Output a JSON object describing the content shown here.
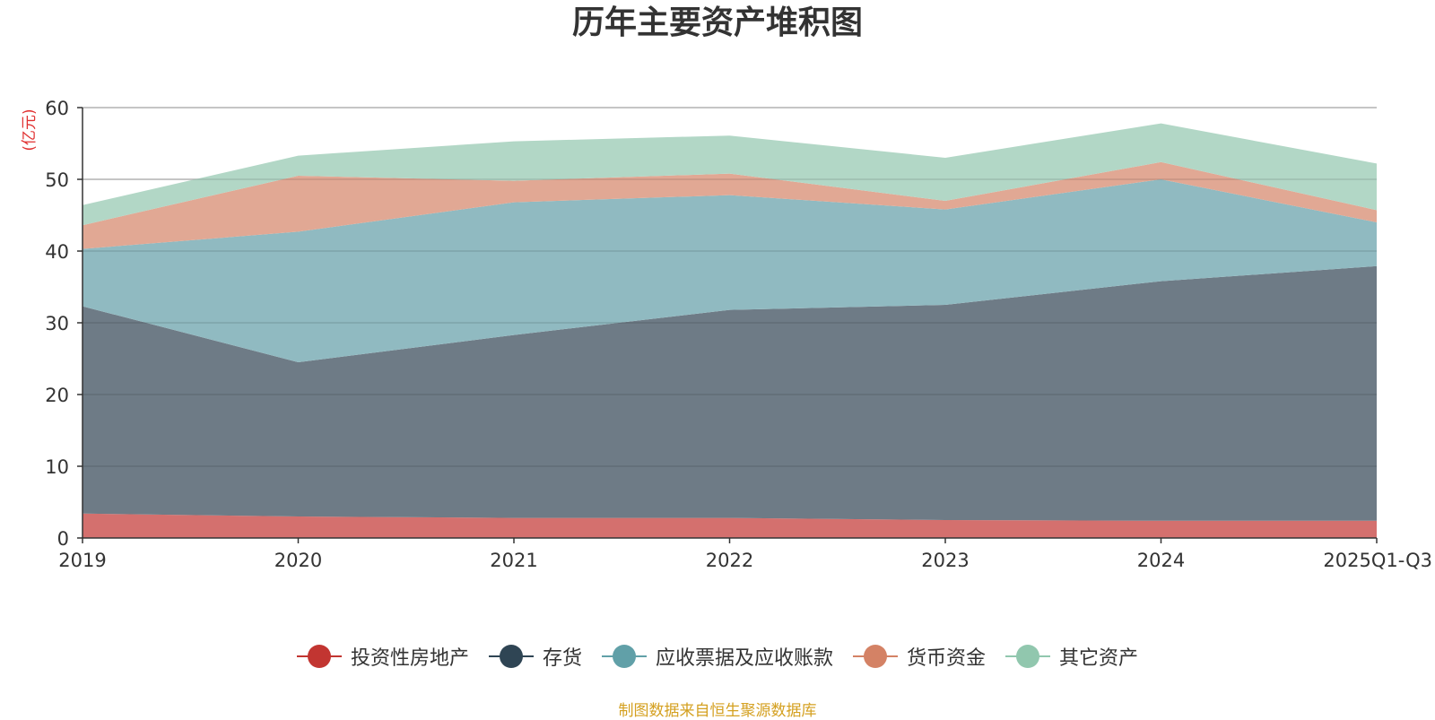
{
  "chart_data": {
    "type": "area",
    "stacked": true,
    "title": "历年主要资产堆积图",
    "unit_label": "(亿元)",
    "categories": [
      "2019",
      "2020",
      "2021",
      "2022",
      "2023",
      "2024",
      "2025Q1-Q3"
    ],
    "yticks": [
      0,
      10,
      20,
      30,
      40,
      50,
      60
    ],
    "ylim": [
      0,
      60
    ],
    "grid": true,
    "legend_position": "bottom",
    "series": [
      {
        "name": "投资性房地产",
        "color": "#c23531",
        "fill": "#d4706e",
        "values": [
          3.4,
          3.0,
          2.8,
          2.8,
          2.5,
          2.4,
          2.4
        ]
      },
      {
        "name": "存货",
        "color": "#2f4554",
        "fill": "#6e7b86",
        "values": [
          28.9,
          21.5,
          25.5,
          29.0,
          30.0,
          33.4,
          35.5
        ]
      },
      {
        "name": "应收票据及应收账款",
        "color": "#61a0a8",
        "fill": "#90bac1",
        "values": [
          8.0,
          18.2,
          18.5,
          16.0,
          13.3,
          14.2,
          6.1
        ]
      },
      {
        "name": "货币资金",
        "color": "#d48265",
        "fill": "#e1a894",
        "values": [
          3.3,
          7.8,
          3.0,
          3.0,
          1.2,
          2.4,
          1.7
        ]
      },
      {
        "name": "其它资产",
        "color": "#91c7ae",
        "fill": "#b2d7c6",
        "values": [
          2.8,
          2.8,
          5.5,
          5.3,
          6.0,
          5.4,
          6.5
        ]
      }
    ]
  },
  "source_note": "制图数据来自恒生聚源数据库"
}
